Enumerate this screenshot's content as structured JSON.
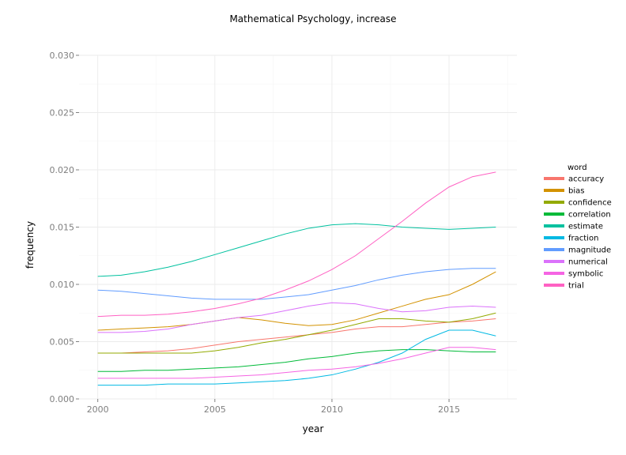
{
  "chart_data": {
    "type": "line",
    "title": "Mathematical Psychology, increase",
    "xlabel": "year",
    "ylabel": "frequency",
    "xlim": [
      1999.2,
      2017.9
    ],
    "ylim": [
      0,
      0.03
    ],
    "xticks": [
      2000,
      2005,
      2010,
      2015
    ],
    "xtick_labels": [
      "2000",
      "2005",
      "2010",
      "2015"
    ],
    "yticks": [
      0,
      0.005,
      0.01,
      0.015,
      0.02,
      0.025,
      0.03
    ],
    "ytick_labels": [
      "0.000",
      "0.005",
      "0.010",
      "0.015",
      "0.020",
      "0.025",
      "0.030"
    ],
    "grid": true,
    "legend": {
      "title": "word",
      "placement": "right"
    },
    "x": [
      2000,
      2001,
      2002,
      2003,
      2004,
      2005,
      2006,
      2007,
      2008,
      2009,
      2010,
      2011,
      2012,
      2013,
      2014,
      2015,
      2016,
      2017
    ],
    "series": [
      {
        "name": "accuracy",
        "color": "#F8766D",
        "values": [
          0.004,
          0.004,
          0.0041,
          0.0042,
          0.0044,
          0.0047,
          0.005,
          0.0052,
          0.0054,
          0.0056,
          0.0058,
          0.0061,
          0.0063,
          0.0063,
          0.0065,
          0.0067,
          0.0068,
          0.007
        ]
      },
      {
        "name": "bias",
        "color": "#D39200",
        "values": [
          0.006,
          0.0061,
          0.0062,
          0.0063,
          0.0065,
          0.0068,
          0.0071,
          0.0069,
          0.0066,
          0.0064,
          0.0065,
          0.0069,
          0.0075,
          0.0081,
          0.0087,
          0.0091,
          0.01,
          0.0111
        ]
      },
      {
        "name": "confidence",
        "color": "#93AA00",
        "values": [
          0.004,
          0.004,
          0.004,
          0.004,
          0.004,
          0.0042,
          0.0045,
          0.0049,
          0.0052,
          0.0056,
          0.006,
          0.0065,
          0.007,
          0.007,
          0.0068,
          0.0067,
          0.007,
          0.0075
        ]
      },
      {
        "name": "correlation",
        "color": "#00BA38",
        "values": [
          0.0024,
          0.0024,
          0.0025,
          0.0025,
          0.0026,
          0.0027,
          0.0028,
          0.003,
          0.0032,
          0.0035,
          0.0037,
          0.004,
          0.0042,
          0.0043,
          0.0043,
          0.0042,
          0.0041,
          0.0041
        ]
      },
      {
        "name": "estimate",
        "color": "#00C19F",
        "values": [
          0.0107,
          0.0108,
          0.0111,
          0.0115,
          0.012,
          0.0126,
          0.0132,
          0.0138,
          0.0144,
          0.0149,
          0.0152,
          0.0153,
          0.0152,
          0.015,
          0.0149,
          0.0148,
          0.0149,
          0.015
        ]
      },
      {
        "name": "fraction",
        "color": "#00B9E3",
        "values": [
          0.0012,
          0.0012,
          0.0012,
          0.0013,
          0.0013,
          0.0013,
          0.0014,
          0.0015,
          0.0016,
          0.0018,
          0.0021,
          0.0026,
          0.0032,
          0.004,
          0.0052,
          0.006,
          0.006,
          0.0055
        ]
      },
      {
        "name": "magnitude",
        "color": "#619CFF",
        "values": [
          0.0095,
          0.0094,
          0.0092,
          0.009,
          0.0088,
          0.0087,
          0.0087,
          0.0087,
          0.0089,
          0.0091,
          0.0095,
          0.0099,
          0.0104,
          0.0108,
          0.0111,
          0.0113,
          0.0114,
          0.0114
        ]
      },
      {
        "name": "numerical",
        "color": "#DB72FB",
        "values": [
          0.0058,
          0.0058,
          0.0059,
          0.0061,
          0.0065,
          0.0068,
          0.0071,
          0.0073,
          0.0077,
          0.0081,
          0.0084,
          0.0083,
          0.0079,
          0.0076,
          0.0077,
          0.008,
          0.0081,
          0.008
        ]
      },
      {
        "name": "symbolic",
        "color": "#F564E3",
        "values": [
          0.0018,
          0.0018,
          0.0018,
          0.0018,
          0.0018,
          0.0019,
          0.002,
          0.0021,
          0.0023,
          0.0025,
          0.0026,
          0.0028,
          0.0031,
          0.0035,
          0.004,
          0.0045,
          0.0045,
          0.0043
        ]
      },
      {
        "name": "trial",
        "color": "#FF61C3",
        "values": [
          0.0072,
          0.0073,
          0.0073,
          0.0074,
          0.0076,
          0.0079,
          0.0083,
          0.0088,
          0.0095,
          0.0103,
          0.0113,
          0.0125,
          0.014,
          0.0155,
          0.0171,
          0.0185,
          0.0194,
          0.0198
        ]
      }
    ]
  }
}
